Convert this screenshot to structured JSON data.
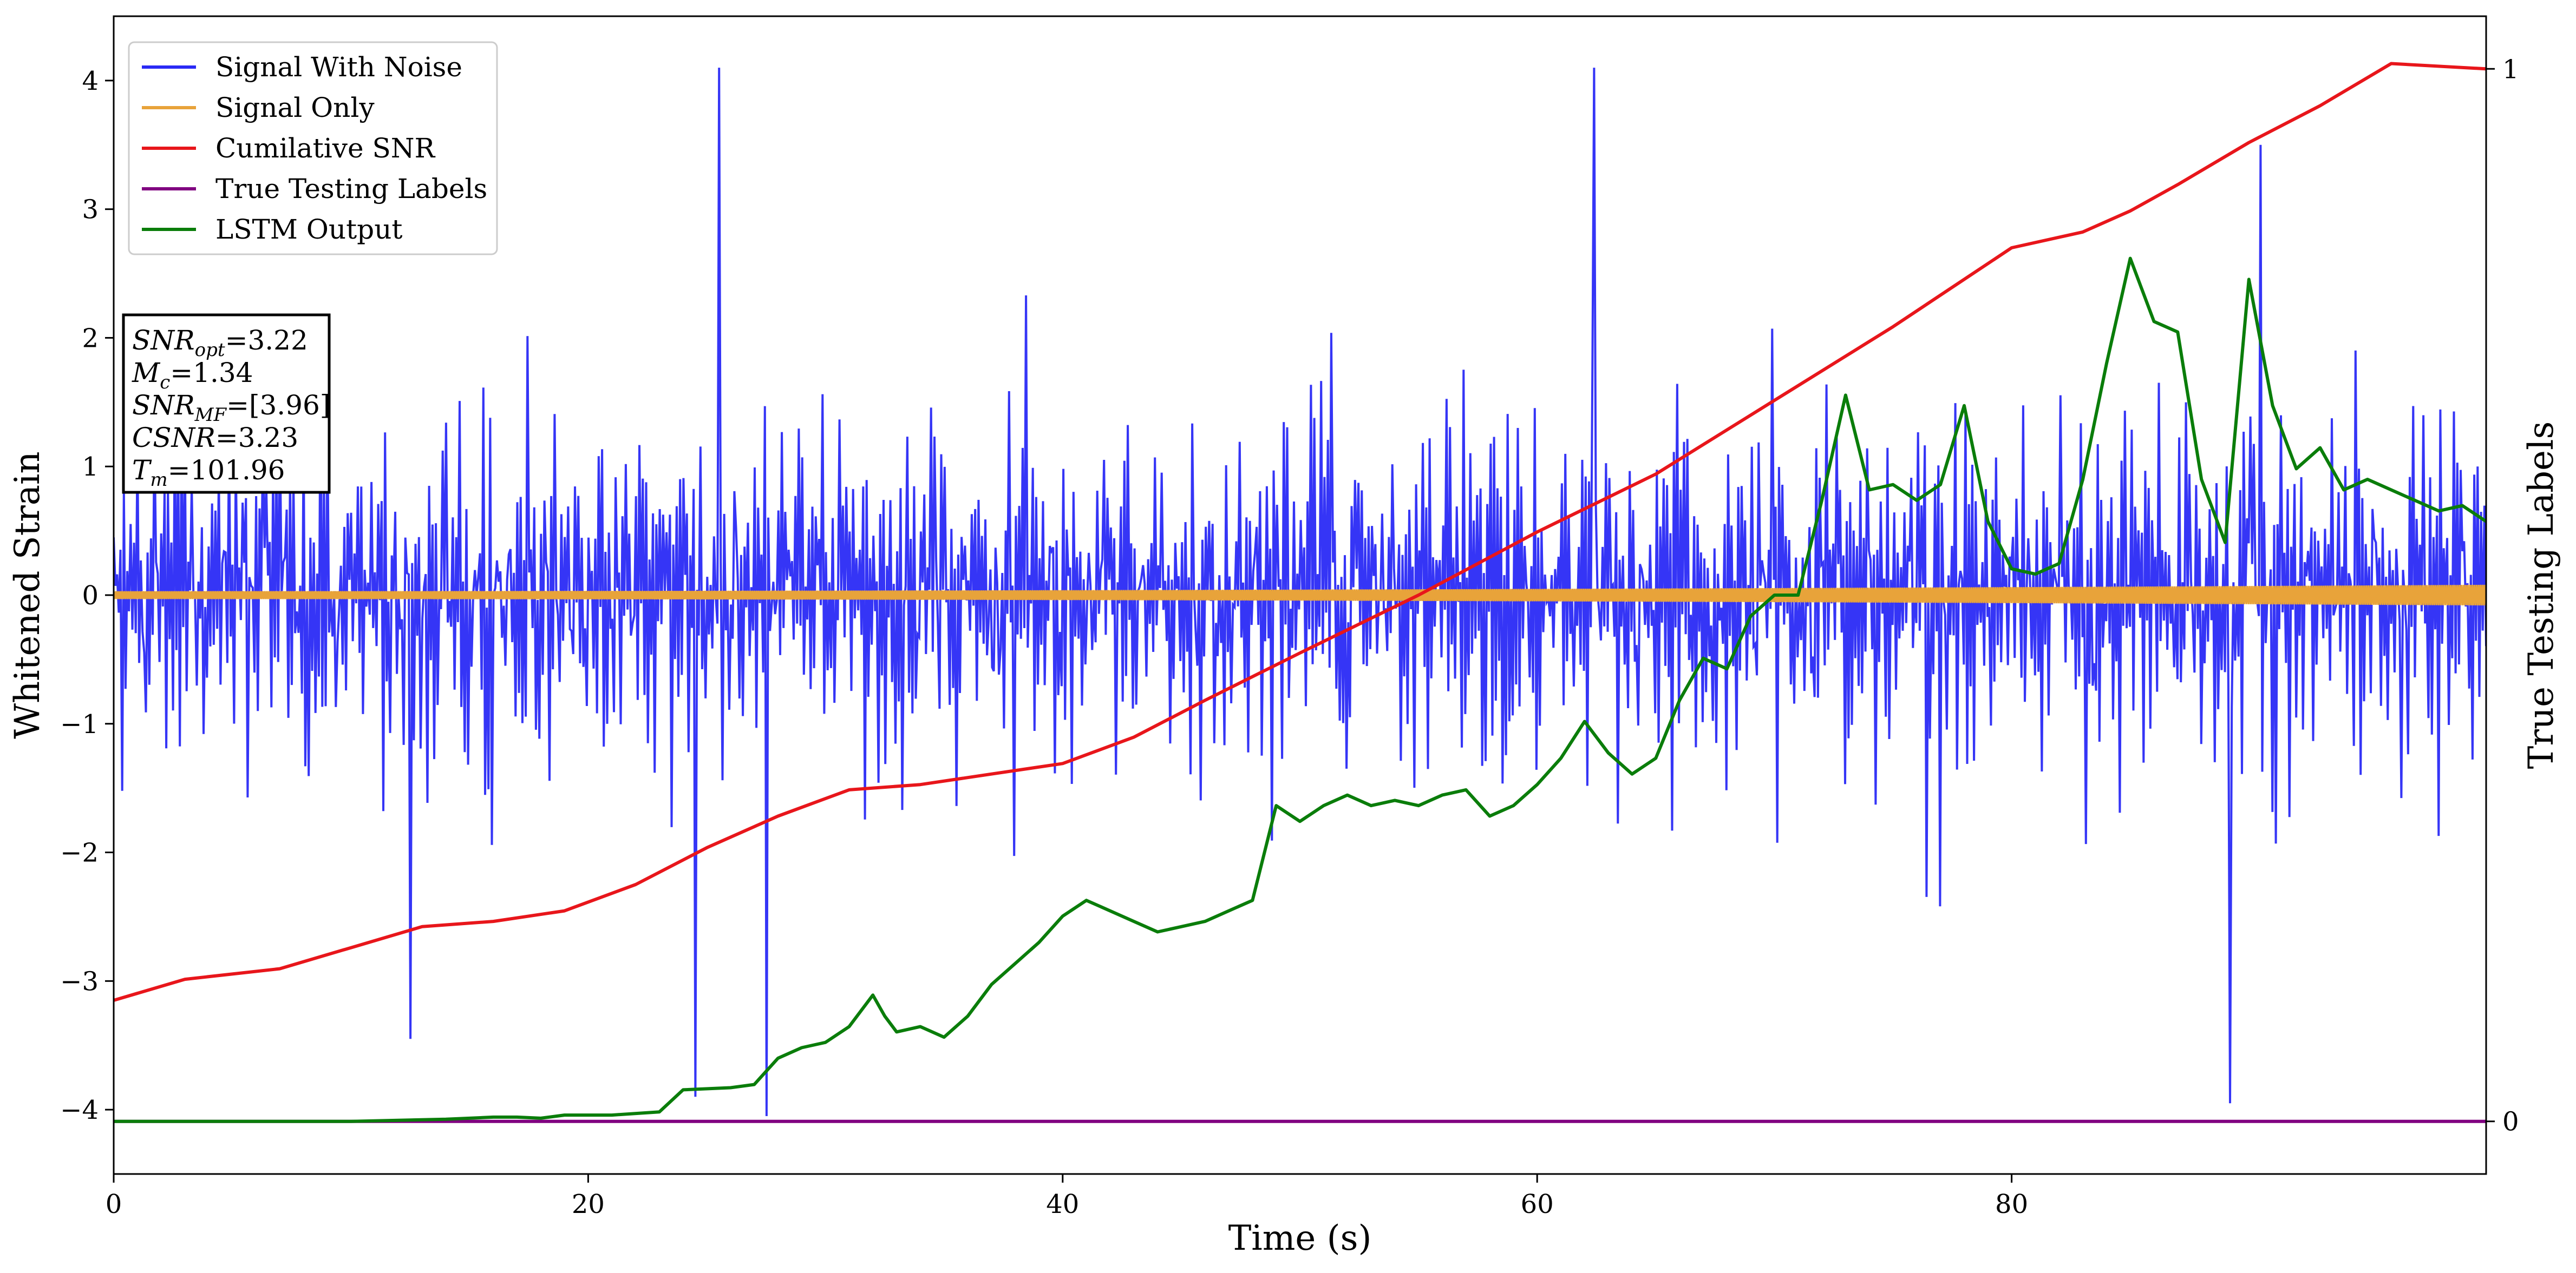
{
  "chart_data": {
    "type": "line",
    "xlabel": "Time (s)",
    "ylabel": "Whitened Strain",
    "y2label": "True Testing Labels",
    "xlim": [
      0,
      100
    ],
    "ylim": [
      -4.5,
      4.5
    ],
    "y2lim": [
      -0.05,
      1.05
    ],
    "xticks": [
      0,
      20,
      40,
      60,
      80
    ],
    "yticks": [
      -4,
      -3,
      -2,
      -1,
      0,
      1,
      2,
      3,
      4
    ],
    "y2ticks": [
      0,
      1
    ],
    "xtick_labels": [
      "0",
      "20",
      "40",
      "60",
      "80"
    ],
    "ytick_labels": [
      "−4",
      "−3",
      "−2",
      "−1",
      "0",
      "1",
      "2",
      "3",
      "4"
    ],
    "y2tick_labels": [
      "0",
      "1"
    ],
    "grid": false,
    "legend_position": "top-left",
    "series": [
      {
        "name": "Signal With Noise",
        "axis": "left",
        "color": "#2a2af5",
        "description_of_values": "white-noise strain, mostly within ±1.5 with spikes to about ±4",
        "noise_sigma": 0.75,
        "num_points": 1400,
        "peaks": [
          [
            12.5,
            -3.45
          ],
          [
            24.5,
            -3.9
          ],
          [
            25.5,
            4.1
          ],
          [
            27.5,
            -4.05
          ],
          [
            62.4,
            4.1
          ],
          [
            89.2,
            -3.95
          ],
          [
            90.5,
            3.5
          ]
        ]
      },
      {
        "name": "Signal Only",
        "axis": "left",
        "color": "#e8a33a",
        "description_of_values": "chirp signal oscillating around 0, amplitude growing from 0.03 to 0.08",
        "amplitude_start": 0.03,
        "amplitude_end": 0.08
      },
      {
        "name": "Cumilative SNR",
        "axis": "right",
        "color": "#e8161b",
        "x": [
          0,
          3,
          7,
          10,
          13,
          16,
          19,
          22,
          25,
          28,
          31,
          34,
          37,
          40,
          43,
          46,
          50,
          55,
          60,
          65,
          70,
          75,
          80,
          83,
          85,
          87,
          90,
          93,
          96,
          100
        ],
        "y": [
          0.115,
          0.135,
          0.145,
          0.165,
          0.185,
          0.19,
          0.2,
          0.225,
          0.26,
          0.29,
          0.315,
          0.32,
          0.33,
          0.34,
          0.365,
          0.4,
          0.445,
          0.5,
          0.56,
          0.615,
          0.685,
          0.755,
          0.83,
          0.845,
          0.865,
          0.89,
          0.93,
          0.965,
          1.005,
          1.0
        ]
      },
      {
        "name": "True Testing Labels",
        "axis": "right",
        "color": "#800080",
        "x": [
          0,
          100
        ],
        "y": [
          0,
          0
        ]
      },
      {
        "name": "LSTM Output",
        "axis": "right",
        "color": "#0a7d0a",
        "x": [
          0,
          5,
          10,
          14,
          16,
          17,
          18,
          19,
          21,
          23,
          24,
          26,
          27,
          28,
          29,
          30,
          31,
          32,
          32.5,
          33,
          34,
          35,
          36,
          37,
          38,
          39,
          40,
          41,
          42,
          43,
          44,
          45,
          46,
          47,
          48,
          49,
          50,
          51,
          52,
          53,
          54,
          55,
          56,
          57,
          58,
          59,
          60,
          61,
          62,
          63,
          64,
          65,
          66,
          67,
          68,
          69,
          70,
          71,
          72,
          73,
          74,
          75,
          76,
          77,
          78,
          79,
          80,
          81,
          82,
          83,
          84,
          85,
          86,
          87,
          88,
          89,
          90,
          91,
          92,
          93,
          94,
          95,
          96,
          97,
          98,
          99,
          100
        ],
        "y": [
          0,
          0,
          0,
          0.002,
          0.004,
          0.004,
          0.003,
          0.006,
          0.006,
          0.009,
          0.03,
          0.032,
          0.035,
          0.06,
          0.07,
          0.075,
          0.09,
          0.12,
          0.1,
          0.085,
          0.09,
          0.08,
          0.1,
          0.13,
          0.15,
          0.17,
          0.195,
          0.21,
          0.2,
          0.19,
          0.18,
          0.185,
          0.19,
          0.2,
          0.21,
          0.3,
          0.285,
          0.3,
          0.31,
          0.3,
          0.305,
          0.3,
          0.31,
          0.315,
          0.29,
          0.3,
          0.32,
          0.345,
          0.38,
          0.35,
          0.33,
          0.345,
          0.4,
          0.44,
          0.43,
          0.48,
          0.5,
          0.5,
          0.59,
          0.69,
          0.6,
          0.605,
          0.59,
          0.605,
          0.68,
          0.57,
          0.525,
          0.52,
          0.53,
          0.61,
          0.72,
          0.82,
          0.76,
          0.75,
          0.61,
          0.55,
          0.8,
          0.68,
          0.62,
          0.64,
          0.6,
          0.61,
          0.6,
          0.59,
          0.58,
          0.585,
          0.57
        ]
      }
    ],
    "annotation_box": {
      "lines": [
        {
          "main": "SNR",
          "sub": "opt",
          "value": "=3.22"
        },
        {
          "main": "M",
          "sub": "c",
          "value": "=1.34"
        },
        {
          "main": "SNR",
          "sub": "MF",
          "value": "=[3.96]"
        },
        {
          "main": "CSNR",
          "sub": "",
          "value": "=3.23"
        },
        {
          "main": "T",
          "sub": "m",
          "value": "=101.96"
        }
      ]
    }
  }
}
